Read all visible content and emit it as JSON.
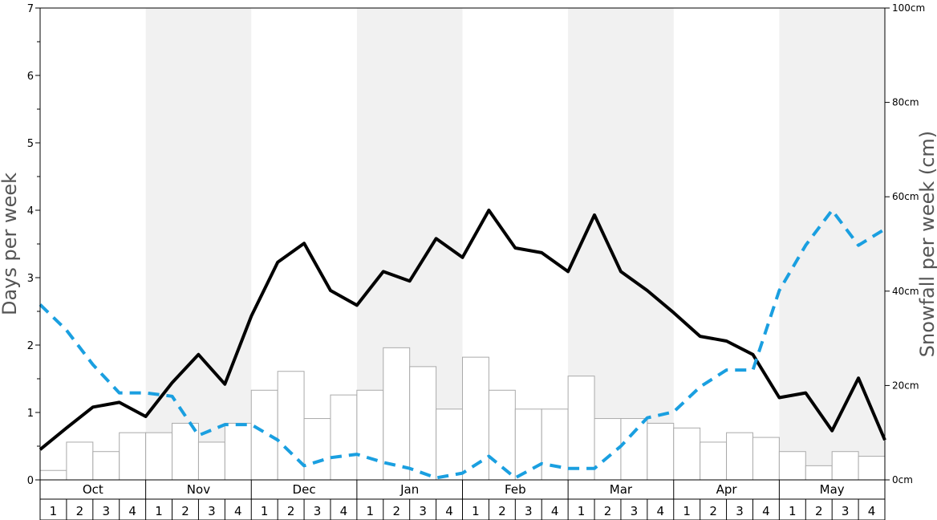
{
  "chart_data": {
    "type": "bar+line",
    "title": "",
    "y_left": {
      "label": "Days per week",
      "ticks": [
        "0",
        "1",
        "2",
        "3",
        "4",
        "5",
        "6",
        "7"
      ],
      "range": [
        0,
        7
      ]
    },
    "y_right": {
      "label": "Snowfall per week (cm)",
      "ticks": [
        "0cm",
        "20cm",
        "40cm",
        "60cm",
        "80cm",
        "100cm"
      ],
      "range": [
        0,
        100
      ]
    },
    "months": [
      "Oct",
      "Nov",
      "Dec",
      "Jan",
      "Feb",
      "Mar",
      "Apr",
      "May"
    ],
    "week_labels": [
      "1",
      "2",
      "3",
      "4"
    ],
    "shaded_months": [
      "Nov",
      "Jan",
      "Mar",
      "May"
    ],
    "grid": false,
    "colors": {
      "bars_fill": "#ffffff",
      "bars_stroke": "#aaaaaa",
      "solid_line": "#000000",
      "dashed_line": "#1a9fe0",
      "shade": "#f1f1f1"
    },
    "series": [
      {
        "kind": "bar",
        "axis": "right",
        "values": [
          2,
          8,
          6,
          10,
          10,
          12,
          8,
          12,
          19,
          23,
          13,
          18,
          19,
          28,
          24,
          15,
          26,
          19,
          15,
          15,
          22,
          13,
          13,
          12,
          11,
          8,
          10,
          9,
          6,
          3,
          6,
          5
        ]
      },
      {
        "kind": "line",
        "style": "solid",
        "axis": "left",
        "values": [
          0.45,
          0.77,
          1.08,
          1.15,
          0.94,
          1.44,
          1.86,
          1.42,
          2.43,
          3.23,
          3.51,
          2.81,
          2.59,
          3.09,
          2.95,
          3.58,
          3.3,
          4.0,
          3.44,
          3.37,
          3.09,
          3.93,
          3.09,
          2.81,
          2.48,
          2.13,
          2.06,
          1.86,
          1.22,
          1.29,
          0.73,
          1.51,
          0.59
        ]
      },
      {
        "kind": "line",
        "style": "dashed",
        "axis": "left",
        "values": [
          2.6,
          2.22,
          1.71,
          1.29,
          1.29,
          1.24,
          0.66,
          0.82,
          0.82,
          0.59,
          0.21,
          0.33,
          0.38,
          0.26,
          0.17,
          0.03,
          0.1,
          0.35,
          0.03,
          0.24,
          0.17,
          0.17,
          0.5,
          0.92,
          1.01,
          1.38,
          1.63,
          1.63,
          2.81,
          3.48,
          4.0,
          3.48,
          3.72
        ]
      }
    ]
  }
}
